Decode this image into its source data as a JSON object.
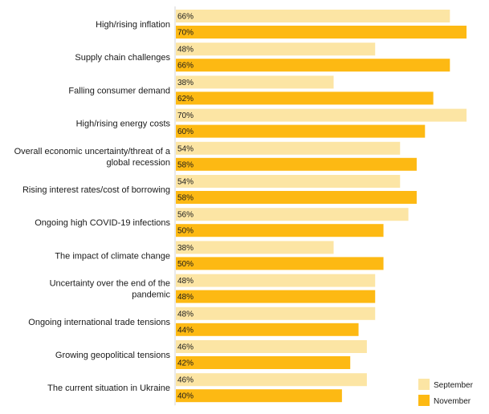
{
  "chart_data": {
    "type": "bar",
    "orientation": "horizontal",
    "title": "",
    "xlabel": "",
    "ylabel": "",
    "xlim": [
      0,
      70
    ],
    "grid": false,
    "legend_position": "bottom-right",
    "categories": [
      [
        "High/rising inflation"
      ],
      [
        "Supply chain challenges"
      ],
      [
        "Falling consumer demand"
      ],
      [
        "High/rising energy costs"
      ],
      [
        "Overall economic uncertainty/threat of a",
        "global recession"
      ],
      [
        "Rising interest rates/cost of borrowing"
      ],
      [
        "Ongoing high COVID-19 infections"
      ],
      [
        "The impact of climate change"
      ],
      [
        "Uncertainty over the end of the",
        "pandemic"
      ],
      [
        "Ongoing international trade tensions"
      ],
      [
        "Growing geopolitical tensions"
      ],
      [
        "The current situation in Ukraine"
      ]
    ],
    "series": [
      {
        "name": "September",
        "color": "#FCE5A4",
        "values": [
          66,
          48,
          38,
          70,
          54,
          54,
          56,
          38,
          48,
          48,
          46,
          46
        ],
        "labels": [
          "66%",
          "48%",
          "38%",
          "70%",
          "54%",
          "54%",
          "56%",
          "38%",
          "48%",
          "48%",
          "46%",
          "46%"
        ]
      },
      {
        "name": "November",
        "color": "#FDB913",
        "values": [
          70,
          66,
          62,
          60,
          58,
          58,
          50,
          50,
          48,
          44,
          42,
          40
        ],
        "labels": [
          "70%",
          "66%",
          "62%",
          "60%",
          "58%",
          "58%",
          "50%",
          "50%",
          "48%",
          "44%",
          "42%",
          "40%"
        ]
      }
    ]
  }
}
